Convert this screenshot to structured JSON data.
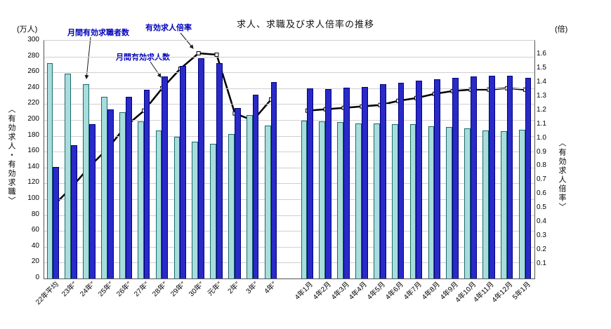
{
  "colors": {
    "seekers_fill": "#a9dcdc",
    "seekers_border": "#1a6b6b",
    "openings_fill": "#2a2ac8",
    "openings_border": "#00007d",
    "ratio_line": "#000000",
    "marker_fill": "#ffffff",
    "annotation_text": "#0000bb",
    "gridline": "#d0d0d0"
  },
  "chart_data": {
    "type": "bar+line",
    "title": "求人、求職及び求人倍率の推移",
    "left_axis": {
      "unit": "(万人)",
      "title": "〈有効求人・有効求職〉",
      "min": 0,
      "max": 300,
      "tick_step": 20
    },
    "right_axis": {
      "unit": "(倍)",
      "title": "〈有効求人倍率〉",
      "min": 0,
      "max": 1.7,
      "tick_step": 0.1,
      "max_label": 1.6
    },
    "series_labels": {
      "seekers": "月間有効求職者数",
      "openings": "月間有効求人数",
      "ratio": "有効求人倍率"
    },
    "legend_position": "top-left-annotations",
    "grid": true,
    "sections": [
      {
        "name": "annual",
        "categories": [
          "22年平均",
          "23年″",
          "24年″",
          "25年″",
          "26年″",
          "27年″",
          "28年″",
          "29年″",
          "30年″",
          "元年″",
          "2年″",
          "3年″",
          "4年″"
        ],
        "seekers": [
          272,
          258,
          245,
          229,
          210,
          198,
          187,
          179,
          173,
          170,
          182,
          206,
          193
        ],
        "openings": [
          141,
          168,
          195,
          213,
          229,
          238,
          255,
          268,
          278,
          272,
          215,
          232,
          248
        ],
        "ratio": [
          0.52,
          0.65,
          0.8,
          0.93,
          1.09,
          1.2,
          1.36,
          1.5,
          1.61,
          1.6,
          1.18,
          1.13,
          1.28
        ]
      },
      {
        "name": "monthly",
        "categories": [
          "4年1月",
          "4年2月",
          "4年3月",
          "4年4月",
          "4年5月",
          "4年6月",
          "4年7月",
          "4年8月",
          "4年9月",
          "4年10月",
          "4年11月",
          "4年12月",
          "5年1月"
        ],
        "seekers": [
          199,
          198,
          197,
          196,
          196,
          195,
          195,
          192,
          191,
          189,
          187,
          186,
          188
        ],
        "openings": [
          240,
          239,
          241,
          242,
          245,
          247,
          250,
          251,
          253,
          255,
          256,
          256,
          253
        ],
        "ratio": [
          1.2,
          1.21,
          1.22,
          1.23,
          1.24,
          1.27,
          1.29,
          1.32,
          1.34,
          1.35,
          1.35,
          1.36,
          1.35
        ]
      }
    ]
  }
}
